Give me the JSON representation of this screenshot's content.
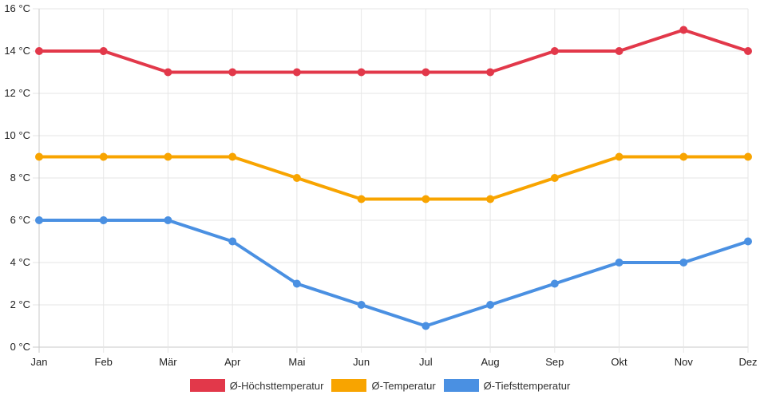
{
  "chart_data": {
    "type": "line",
    "categories": [
      "Jan",
      "Feb",
      "Mär",
      "Apr",
      "Mai",
      "Jun",
      "Jul",
      "Aug",
      "Sep",
      "Okt",
      "Nov",
      "Dez"
    ],
    "series": [
      {
        "name": "Ø-Höchsttemperatur",
        "color": "#e2384a",
        "values": [
          14,
          14,
          13,
          13,
          13,
          13,
          13,
          13,
          14,
          14,
          15,
          14
        ]
      },
      {
        "name": "Ø-Temperatur",
        "color": "#f8a400",
        "values": [
          9,
          9,
          9,
          9,
          8,
          7,
          7,
          7,
          8,
          9,
          9,
          9
        ]
      },
      {
        "name": "Ø-Tiefsttemperatur",
        "color": "#4a90e2",
        "values": [
          6,
          6,
          6,
          5,
          3,
          2,
          1,
          2,
          3,
          4,
          4,
          5
        ]
      }
    ],
    "ylim": [
      0,
      16
    ],
    "yticks": [
      0,
      2,
      4,
      6,
      8,
      10,
      12,
      14,
      16
    ],
    "ytick_labels": [
      "0 °C",
      "2 °C",
      "4 °C",
      "6 °C",
      "8 °C",
      "10 °C",
      "12 °C",
      "14 °C",
      "16 °C"
    ],
    "grid": true,
    "legend_position": "bottom"
  }
}
